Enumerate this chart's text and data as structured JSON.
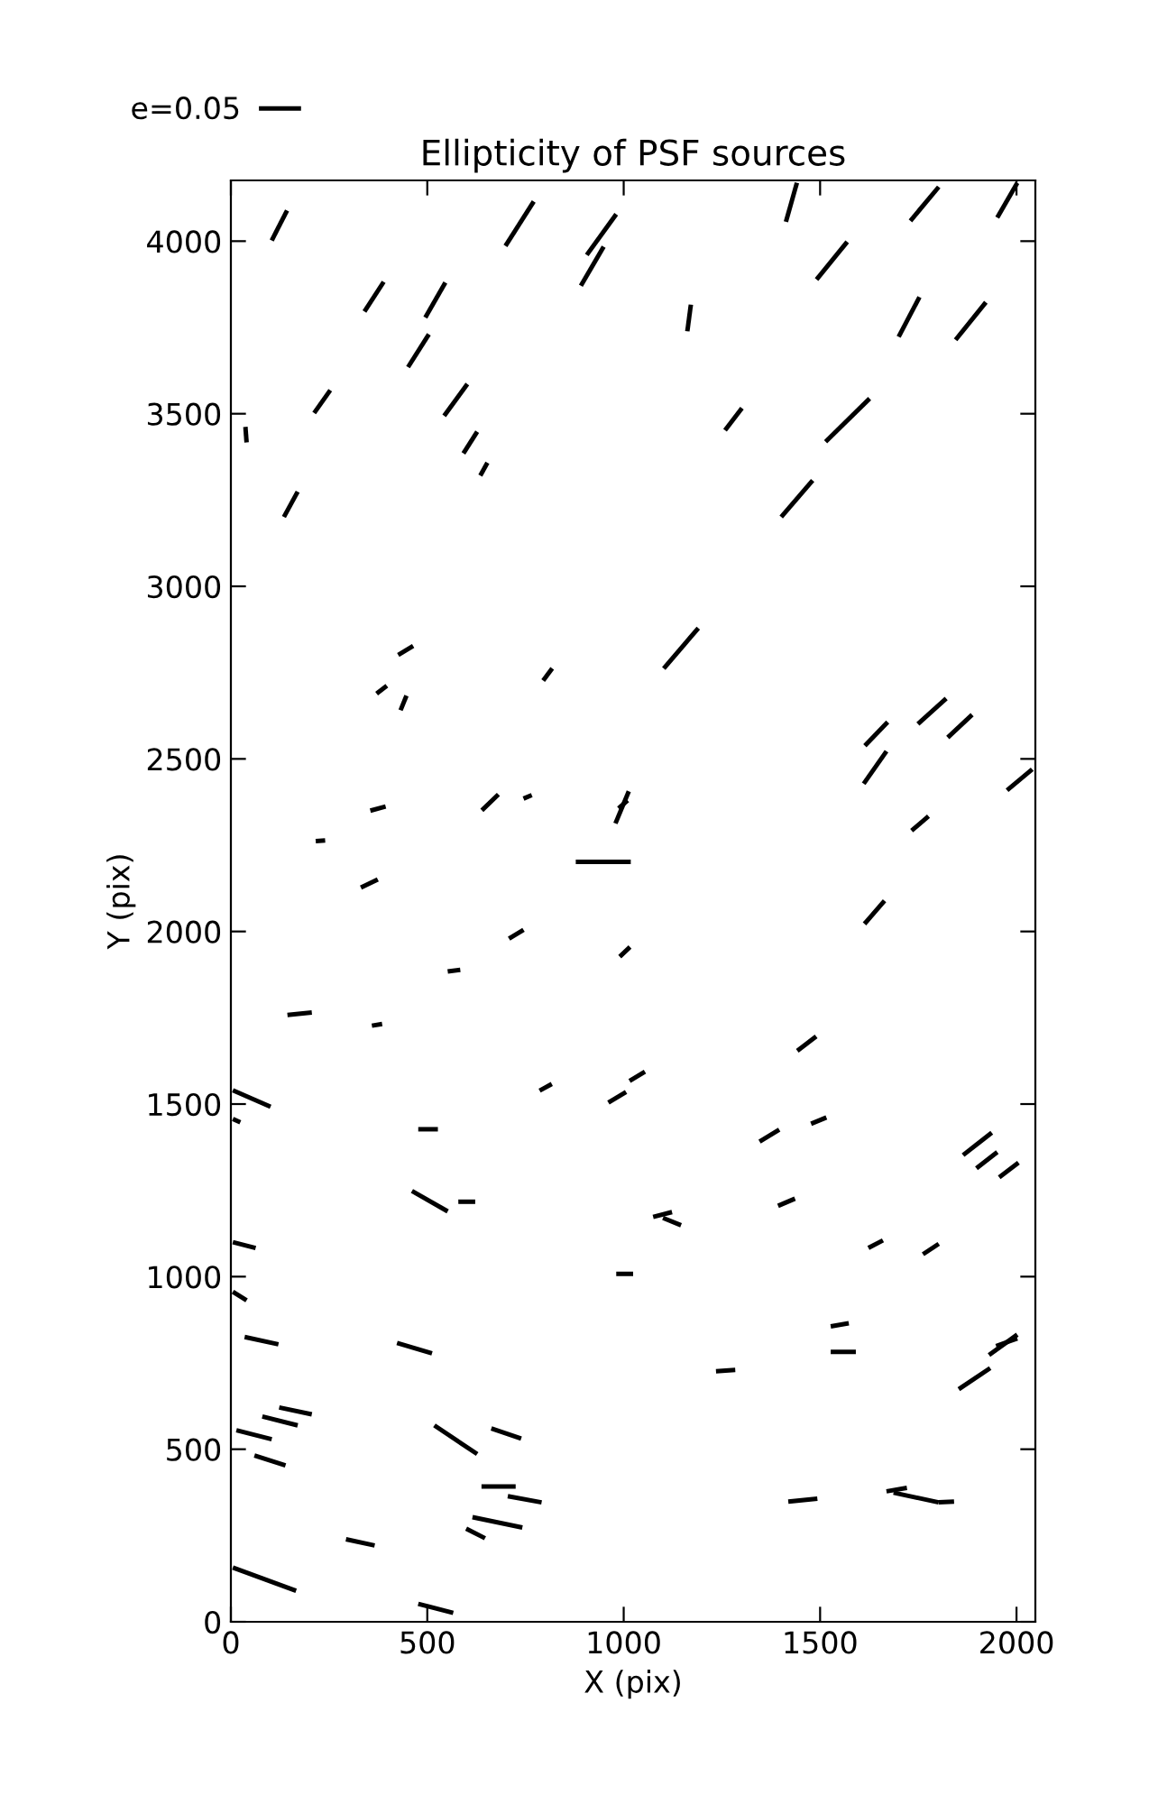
{
  "chart_data": {
    "type": "line",
    "title": "Ellipticity of PSF sources",
    "xlabel": "X (pix)",
    "ylabel": "Y (pix)",
    "xlim": [
      0,
      2048
    ],
    "ylim": [
      0,
      4176
    ],
    "xticks": [
      0,
      500,
      1000,
      1500,
      2000
    ],
    "yticks": [
      0,
      500,
      1000,
      1500,
      2000,
      2500,
      3000,
      3500,
      4000
    ],
    "color": "#000000",
    "grid": false,
    "legend": "top left",
    "marker": "none",
    "line_style": "solid",
    "series": [
      {
        "name": "e=0.05",
        "x": [
          104,
          143
        ],
        "values": [
          4002,
          4089
        ]
      },
      {
        "x": [
          699,
          771
        ],
        "values": [
          3986,
          4115
        ]
      },
      {
        "x": [
          906,
          981
        ],
        "values": [
          3960,
          4078
        ]
      },
      {
        "x": [
          891,
          949
        ],
        "values": [
          3871,
          3984
        ]
      },
      {
        "x": [
          1413,
          1441
        ],
        "values": [
          4056,
          4169
        ]
      },
      {
        "x": [
          1730,
          1802
        ],
        "values": [
          4059,
          4157
        ]
      },
      {
        "x": [
          1951,
          2002
        ],
        "values": [
          4068,
          4169
        ]
      },
      {
        "x": [
          1491,
          1569
        ],
        "values": [
          3889,
          3998
        ]
      },
      {
        "x": [
          340,
          389
        ],
        "values": [
          3796,
          3882
        ]
      },
      {
        "x": [
          495,
          546
        ],
        "values": [
          3779,
          3880
        ]
      },
      {
        "x": [
          1162,
          1171
        ],
        "values": [
          3739,
          3816
        ]
      },
      {
        "x": [
          1700,
          1753
        ],
        "values": [
          3723,
          3838
        ]
      },
      {
        "x": [
          1845,
          1922
        ],
        "values": [
          3714,
          3823
        ]
      },
      {
        "x": [
          451,
          504
        ],
        "values": [
          3635,
          3730
        ]
      },
      {
        "x": [
          212,
          253
        ],
        "values": [
          3502,
          3568
        ]
      },
      {
        "x": [
          543,
          602
        ],
        "values": [
          3494,
          3586
        ]
      },
      {
        "x": [
          1258,
          1301
        ],
        "values": [
          3452,
          3516
        ]
      },
      {
        "x": [
          1514,
          1626
        ],
        "values": [
          3419,
          3544
        ]
      },
      {
        "x": [
          37,
          40
        ],
        "values": [
          3462,
          3417
        ]
      },
      {
        "x": [
          592,
          627
        ],
        "values": [
          3385,
          3448
        ]
      },
      {
        "x": [
          635,
          653
        ],
        "values": [
          3321,
          3358
        ]
      },
      {
        "x": [
          135,
          170
        ],
        "values": [
          3201,
          3274
        ]
      },
      {
        "x": [
          1401,
          1481
        ],
        "values": [
          3201,
          3307
        ]
      },
      {
        "x": [
          426,
          464
        ],
        "values": [
          2801,
          2827
        ]
      },
      {
        "x": [
          1102,
          1190
        ],
        "values": [
          2762,
          2879
        ]
      },
      {
        "x": [
          795,
          818
        ],
        "values": [
          2727,
          2762
        ]
      },
      {
        "x": [
          371,
          397
        ],
        "values": [
          2689,
          2712
        ]
      },
      {
        "x": [
          432,
          447
        ],
        "values": [
          2641,
          2683
        ]
      },
      {
        "x": [
          1614,
          1672
        ],
        "values": [
          2538,
          2607
        ]
      },
      {
        "x": [
          1749,
          1821
        ],
        "values": [
          2601,
          2675
        ]
      },
      {
        "x": [
          1825,
          1887
        ],
        "values": [
          2562,
          2628
        ]
      },
      {
        "x": [
          1611,
          1669
        ],
        "values": [
          2428,
          2522
        ]
      },
      {
        "x": [
          1976,
          2040
        ],
        "values": [
          2409,
          2470
        ]
      },
      {
        "x": [
          355,
          394
        ],
        "values": [
          2350,
          2362
        ]
      },
      {
        "x": [
          639,
          681
        ],
        "values": [
          2351,
          2397
        ]
      },
      {
        "x": [
          745,
          766
        ],
        "values": [
          2385,
          2395
        ]
      },
      {
        "x": [
          979,
          1013
        ],
        "values": [
          2313,
          2406
        ]
      },
      {
        "x": [
          987,
          1010
        ],
        "values": [
          2357,
          2380
        ]
      },
      {
        "x": [
          216,
          240
        ],
        "values": [
          2262,
          2264
        ]
      },
      {
        "x": [
          1733,
          1776
        ],
        "values": [
          2292,
          2334
        ]
      },
      {
        "x": [
          878,
          1018
        ],
        "values": [
          2202,
          2202
        ]
      },
      {
        "x": [
          331,
          374
        ],
        "values": [
          2127,
          2151
        ]
      },
      {
        "x": [
          1613,
          1664
        ],
        "values": [
          2022,
          2089
        ]
      },
      {
        "x": [
          708,
          745
        ],
        "values": [
          1979,
          2005
        ]
      },
      {
        "x": [
          990,
          1016
        ],
        "values": [
          1927,
          1955
        ]
      },
      {
        "x": [
          552,
          584
        ],
        "values": [
          1884,
          1889
        ]
      },
      {
        "x": [
          144,
          206
        ],
        "values": [
          1758,
          1765
        ]
      },
      {
        "x": [
          359,
          385
        ],
        "values": [
          1727,
          1732
        ]
      },
      {
        "x": [
          1442,
          1490
        ],
        "values": [
          1654,
          1696
        ]
      },
      {
        "x": [
          786,
          817
        ],
        "values": [
          1539,
          1558
        ]
      },
      {
        "x": [
          961,
          1006
        ],
        "values": [
          1504,
          1535
        ]
      },
      {
        "x": [
          1015,
          1054
        ],
        "values": [
          1567,
          1594
        ]
      },
      {
        "x": [
          5,
          101
        ],
        "values": [
          1540,
          1492
        ]
      },
      {
        "x": [
          5,
          24
        ],
        "values": [
          1457,
          1447
        ]
      },
      {
        "x": [
          477,
          527
        ],
        "values": [
          1427,
          1427
        ]
      },
      {
        "x": [
          1346,
          1396
        ],
        "values": [
          1391,
          1426
        ]
      },
      {
        "x": [
          1477,
          1516
        ],
        "values": [
          1443,
          1461
        ]
      },
      {
        "x": [
          1864,
          1937
        ],
        "values": [
          1352,
          1417
        ]
      },
      {
        "x": [
          1898,
          1951
        ],
        "values": [
          1314,
          1361
        ]
      },
      {
        "x": [
          1956,
          2005
        ],
        "values": [
          1288,
          1330
        ]
      },
      {
        "x": [
          461,
          552
        ],
        "values": [
          1248,
          1189
        ]
      },
      {
        "x": [
          579,
          622
        ],
        "values": [
          1217,
          1217
        ]
      },
      {
        "x": [
          1075,
          1123
        ],
        "values": [
          1173,
          1187
        ]
      },
      {
        "x": [
          1100,
          1146
        ],
        "values": [
          1170,
          1149
        ]
      },
      {
        "x": [
          1393,
          1436
        ],
        "values": [
          1205,
          1226
        ]
      },
      {
        "x": [
          1623,
          1660
        ],
        "values": [
          1083,
          1105
        ]
      },
      {
        "x": [
          1762,
          1802
        ],
        "values": [
          1065,
          1095
        ]
      },
      {
        "x": [
          5,
          63
        ],
        "values": [
          1100,
          1083
        ]
      },
      {
        "x": [
          981,
          1024
        ],
        "values": [
          1008,
          1008
        ]
      },
      {
        "x": [
          5,
          40
        ],
        "values": [
          956,
          931
        ]
      },
      {
        "x": [
          35,
          121
        ],
        "values": [
          825,
          804
        ]
      },
      {
        "x": [
          423,
          512
        ],
        "values": [
          808,
          778
        ]
      },
      {
        "x": [
          1527,
          1573
        ],
        "values": [
          856,
          865
        ]
      },
      {
        "x": [
          1527,
          1591
        ],
        "values": [
          782,
          782
        ]
      },
      {
        "x": [
          1930,
          2002
        ],
        "values": [
          773,
          832
        ]
      },
      {
        "x": [
          1948,
          2002
        ],
        "values": [
          799,
          821
        ]
      },
      {
        "x": [
          1235,
          1284
        ],
        "values": [
          726,
          730
        ]
      },
      {
        "x": [
          1853,
          1933
        ],
        "values": [
          674,
          735
        ]
      },
      {
        "x": [
          123,
          206
        ],
        "values": [
          621,
          601
        ]
      },
      {
        "x": [
          80,
          170
        ],
        "values": [
          595,
          569
        ]
      },
      {
        "x": [
          14,
          104
        ],
        "values": [
          555,
          529
        ]
      },
      {
        "x": [
          60,
          139
        ],
        "values": [
          482,
          453
        ]
      },
      {
        "x": [
          518,
          627
        ],
        "values": [
          569,
          486
        ]
      },
      {
        "x": [
          663,
          739
        ],
        "values": [
          560,
          531
        ]
      },
      {
        "x": [
          638,
          725
        ],
        "values": [
          392,
          392
        ]
      },
      {
        "x": [
          705,
          791
        ],
        "values": [
          364,
          346
        ]
      },
      {
        "x": [
          615,
          742
        ],
        "values": [
          303,
          273
        ]
      },
      {
        "x": [
          599,
          647
        ],
        "values": [
          270,
          242
        ]
      },
      {
        "x": [
          293,
          366
        ],
        "values": [
          239,
          221
        ]
      },
      {
        "x": [
          5,
          166
        ],
        "values": [
          157,
          90
        ]
      },
      {
        "x": [
          477,
          566
        ],
        "values": [
          52,
          26
        ]
      },
      {
        "x": [
          1419,
          1493
        ],
        "values": [
          348,
          357
        ]
      },
      {
        "x": [
          1669,
          1721
        ],
        "values": [
          378,
          388
        ]
      },
      {
        "x": [
          1687,
          1802
        ],
        "values": [
          374,
          346
        ]
      },
      {
        "x": [
          1802,
          1841
        ],
        "values": [
          346,
          348
        ]
      }
    ]
  }
}
